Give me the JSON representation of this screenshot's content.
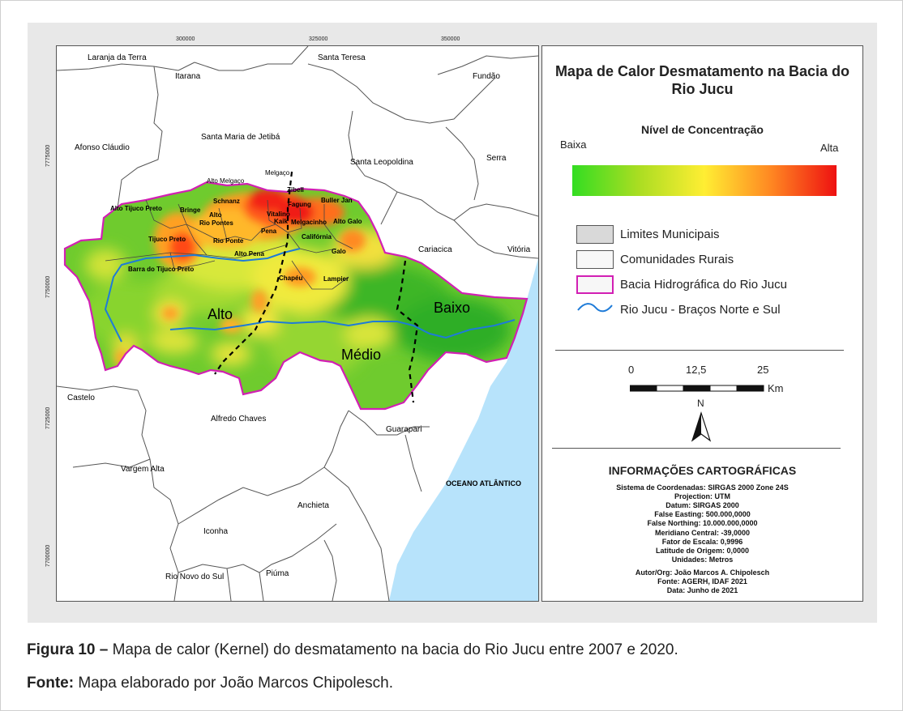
{
  "map": {
    "top_ticks": [
      "300000",
      "325000",
      "350000"
    ],
    "left_ticks": [
      "7775000",
      "7750000",
      "7725000",
      "7700000"
    ],
    "municipalities": [
      "Laranja da Terra",
      "Santa Teresa",
      "Itarana",
      "Fundão",
      "Santa Maria de Jetibá",
      "Afonso Cláudio",
      "Serra",
      "Santa Leopoldina",
      "Cariacica",
      "Vitória",
      "Castelo",
      "Alfredo Chaves",
      "Guarapari",
      "Vargem Alta",
      "Anchieta",
      "Iconha",
      "Rio Novo do Sul",
      "Piúma"
    ],
    "communities": [
      "Alto Melgaço",
      "Melgaço",
      "Zibell",
      "Schnanz",
      "Buller Jan",
      "Alto Tijuco Preto",
      "Bringe",
      "Alto",
      "Rio Pontes",
      "Vitalino",
      "Fagung",
      "Kaik",
      "Melgacinho",
      "Alto Galo",
      "Pena",
      "Califórnia",
      "Tijuco Preto",
      "Rio Ponte",
      "Galo",
      "Alto Pena",
      "Barra do Tijuco Preto",
      "Chapéu",
      "Lampier"
    ],
    "regions": [
      "Alto",
      "Médio",
      "Baixo"
    ],
    "ocean_label": "OCEANO ATLÂNTICO"
  },
  "legend": {
    "title": "Mapa de Calor Desmatamento na Bacia do Rio Jucu",
    "concentration_title": "Nível de Concentração",
    "low": "Baixa",
    "high": "Alta",
    "gradient_colors": [
      "#33dd22",
      "#aadd22",
      "#ffee33",
      "#ff8822",
      "#ee1111"
    ],
    "items": [
      {
        "label": "Limites Municipais",
        "icon": "gray-box",
        "fill": "#d9d9d9",
        "stroke": "#444444"
      },
      {
        "label": "Comunidades Rurais",
        "icon": "white-box",
        "fill": "#f7f7f7",
        "stroke": "#444444"
      },
      {
        "label": "Bacia Hidrográfica do Rio Jucu",
        "icon": "magenta-outline-box",
        "fill": "#f7f7f7",
        "stroke": "#d21fb4"
      },
      {
        "label": "Rio Jucu - Braços Norte e Sul",
        "icon": "blue-wave",
        "fill": "",
        "stroke": "#1e7bd8"
      }
    ],
    "scale_labels": [
      "0",
      "12,5",
      "25"
    ],
    "scale_unit": "Km",
    "north_label": "N",
    "info_title": "INFORMAÇÕES CARTOGRÁFICAS",
    "info_lines": [
      "Sistema de Coordenadas: SIRGAS 2000  Zone 24S",
      "Projection: UTM",
      "Datum: SIRGAS 2000",
      "False Easting: 500.000,0000",
      "False Northing: 10.000.000,0000",
      "Meridiano Central: -39,0000",
      "Fator de Escala: 0,9996",
      "Latitude de Origem: 0,0000",
      "Unidades: Metros",
      "Autor/Org: João Marcos A. Chipolesch",
      "Fonte: AGERH, IDAF 2021",
      "Data: Junho de 2021"
    ]
  },
  "caption": {
    "figure_label": "Figura 10 –",
    "figure_text": " Mapa de calor (Kernel) do desmatamento na bacia do Rio Jucu entre 2007 e 2020.",
    "source_label": "Fonte:",
    "source_text": " Mapa elaborado por João Marcos Chipolesch."
  }
}
